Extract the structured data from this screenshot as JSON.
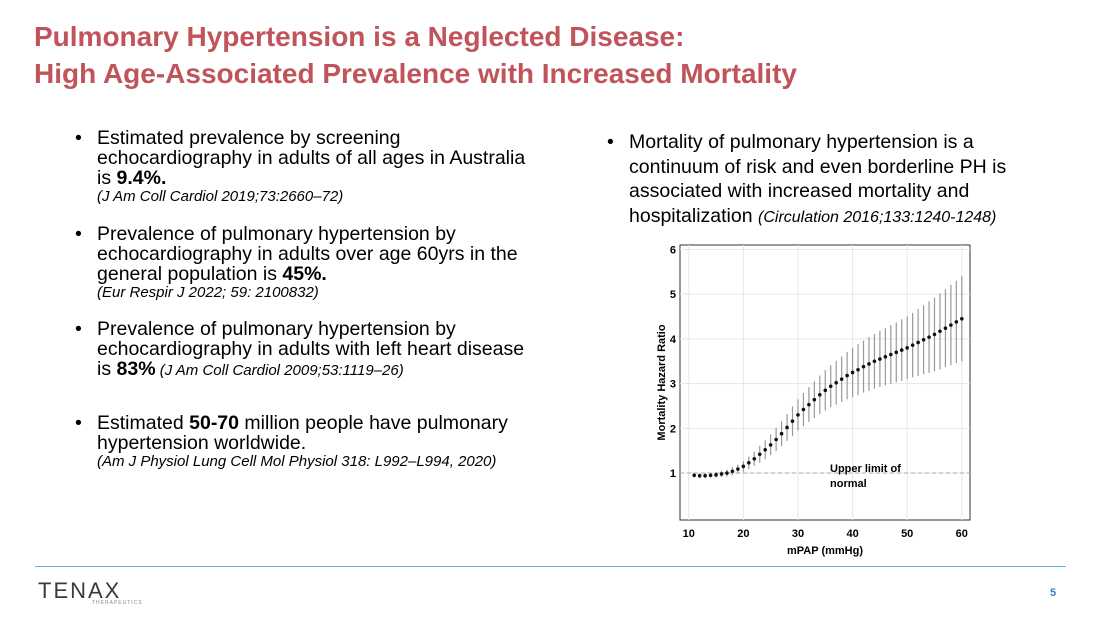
{
  "header": {
    "title_lines": [
      "Pulmonary Hypertension is a Neglected Disease:",
      "High Age-Associated Prevalence with Increased Mortality"
    ]
  },
  "left_bullets": [
    {
      "segments": [
        {
          "text": "Estimated prevalence by screening echocardiography in adults of all ages in Australia is ",
          "style": "normal"
        },
        {
          "text": "9.4%.",
          "style": "bold"
        },
        {
          "text": "(J Am Coll Cardiol 2019;73:2660–72)",
          "style": "citation-block"
        }
      ]
    },
    {
      "segments": [
        {
          "text": "Prevalence of pulmonary hypertension by echocardiography in adults over age 60yrs in the general population is ",
          "style": "normal"
        },
        {
          "text": "45%.",
          "style": "bold"
        },
        {
          "text": "(Eur Respir J 2022; 59: 2100832)",
          "style": "citation-block"
        }
      ]
    },
    {
      "segments": [
        {
          "text": "Prevalence of pulmonary hypertension by echocardiography in adults with left heart disease is ",
          "style": "normal"
        },
        {
          "text": "83%",
          "style": "bold"
        },
        {
          "text": " (J Am Coll Cardiol 2009;53:1119–26)",
          "style": "citation"
        }
      ]
    },
    {
      "segments": [
        {
          "text": "Estimated ",
          "style": "normal"
        },
        {
          "text": "50-70",
          "style": "bold"
        },
        {
          "text": " million people have pulmonary hypertension worldwide.",
          "style": "normal"
        },
        {
          "text": "(Am J Physiol Lung Cell Mol Physiol 318: L992–L994, 2020)",
          "style": "citation-block"
        }
      ]
    }
  ],
  "right_bullet": {
    "segments": [
      {
        "text": "Mortality of pulmonary hypertension is a continuum of risk and even borderline PH is associated with increased mortality and hospitalization ",
        "style": "normal"
      },
      {
        "text": "(Circulation 2016;133:1240-1248)",
        "style": "citation-inline"
      }
    ]
  },
  "chart_data": {
    "type": "errorbar-scatter",
    "x_label": "mPAP (mmHg)",
    "y_label": "Mortality Hazard Ratio",
    "annotation_lines": [
      "Upper limit of",
      "normal"
    ],
    "reference_line": 1,
    "x": [
      11,
      12,
      13,
      14,
      15,
      16,
      17,
      18,
      19,
      20,
      21,
      22,
      23,
      24,
      25,
      26,
      27,
      28,
      29,
      30,
      31,
      32,
      33,
      34,
      35,
      36,
      37,
      38,
      39,
      40,
      41,
      42,
      43,
      44,
      45,
      46,
      47,
      48,
      49,
      50,
      51,
      52,
      53,
      54,
      55,
      56,
      57,
      58,
      59,
      60
    ],
    "values": [
      0.95,
      0.94,
      0.94,
      0.95,
      0.96,
      0.98,
      1.0,
      1.04,
      1.09,
      1.15,
      1.23,
      1.32,
      1.42,
      1.52,
      1.63,
      1.75,
      1.88,
      2.02,
      2.16,
      2.3,
      2.42,
      2.53,
      2.64,
      2.75,
      2.85,
      2.94,
      3.02,
      3.1,
      3.18,
      3.25,
      3.31,
      3.38,
      3.44,
      3.5,
      3.55,
      3.6,
      3.65,
      3.7,
      3.75,
      3.8,
      3.86,
      3.92,
      3.98,
      4.04,
      4.1,
      4.17,
      4.24,
      4.31,
      4.38,
      4.45
    ],
    "errors": [
      0.05,
      0.05,
      0.05,
      0.05,
      0.06,
      0.07,
      0.08,
      0.09,
      0.1,
      0.12,
      0.14,
      0.16,
      0.19,
      0.21,
      0.23,
      0.26,
      0.28,
      0.3,
      0.33,
      0.35,
      0.37,
      0.39,
      0.41,
      0.43,
      0.45,
      0.47,
      0.49,
      0.51,
      0.53,
      0.55,
      0.57,
      0.58,
      0.6,
      0.61,
      0.63,
      0.64,
      0.66,
      0.67,
      0.69,
      0.7,
      0.72,
      0.75,
      0.77,
      0.8,
      0.82,
      0.85,
      0.87,
      0.9,
      0.92,
      0.95
    ],
    "color": "#111111",
    "error_color": "#999999",
    "xlim": [
      8.4,
      61.5
    ],
    "ylim": [
      -0.05,
      6.1
    ],
    "xticks": [
      10,
      20,
      30,
      40,
      50,
      60
    ],
    "yticks": [
      1,
      2,
      3,
      4,
      5,
      6
    ],
    "grid": true
  },
  "footer": {
    "logo": "TENAX",
    "logo_sub": "THERAPEUTICS",
    "page_number": "5"
  }
}
